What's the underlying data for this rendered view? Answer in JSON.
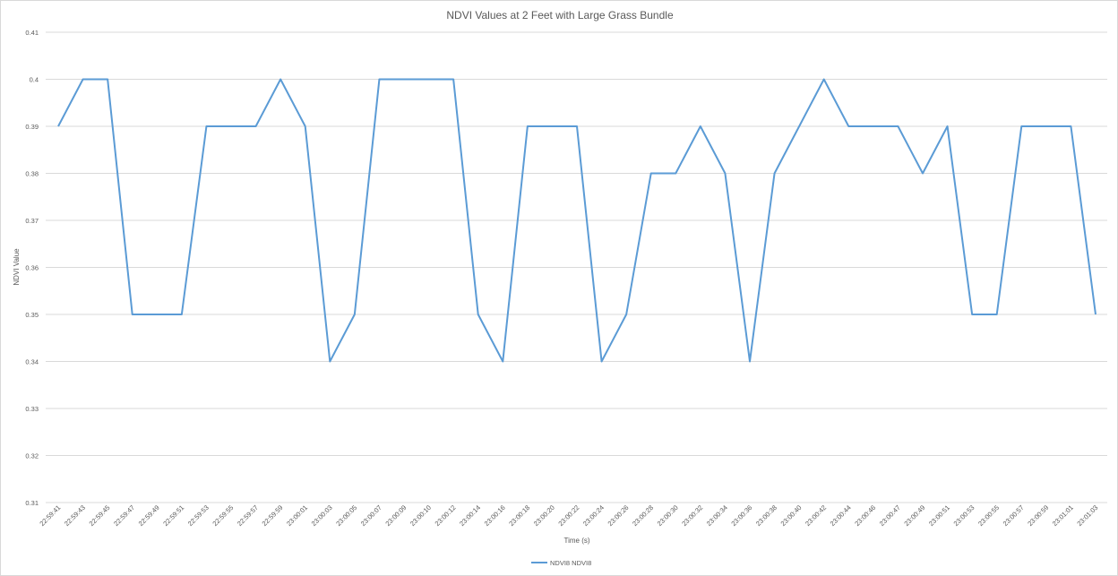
{
  "chart_data": {
    "type": "line",
    "title": "NDVI Values at 2 Feet with Large Grass Bundle",
    "xlabel": "Time (s)",
    "ylabel": "NDVI Value",
    "ylim": [
      0.31,
      0.41
    ],
    "yticks": [
      "0.31",
      "0.32",
      "0.33",
      "0.34",
      "0.35",
      "0.36",
      "0.37",
      "0.38",
      "0.39",
      "0.4",
      "0.41"
    ],
    "grid": true,
    "legend_position": "bottom",
    "colors": {
      "series": "#5b9bd5",
      "grid": "#d9d9d9",
      "text": "#595959"
    },
    "x": [
      "22:59:41",
      "22:59:43",
      "22:59:45",
      "22:59:47",
      "22:59:49",
      "22:59:51",
      "22:59:53",
      "22:59:55",
      "22:59:57",
      "22:59:59",
      "23:00:01",
      "23:00:03",
      "23:00:05",
      "23:00:07",
      "23:00:09",
      "23:00:10",
      "23:00:12",
      "23:00:14",
      "23:00:16",
      "23:00:18",
      "23:00:20",
      "23:00:22",
      "23:00:24",
      "23:00:26",
      "23:00:28",
      "23:00:30",
      "23:00:32",
      "23:00:34",
      "23:00:36",
      "23:00:38",
      "23:00:40",
      "23:00:42",
      "23:00:44",
      "23:00:46",
      "23:00:47",
      "23:00:49",
      "23:00:51",
      "23:00:53",
      "23:00:55",
      "23:00:57",
      "23:00:59",
      "23:01:01",
      "23:01:03"
    ],
    "series": [
      {
        "name": "NDVI8 NDVI8",
        "values": [
          0.39,
          0.4,
          0.4,
          0.35,
          0.35,
          0.35,
          0.39,
          0.39,
          0.39,
          0.4,
          0.39,
          0.34,
          0.35,
          0.4,
          0.4,
          0.4,
          0.4,
          0.35,
          0.34,
          0.39,
          0.39,
          0.39,
          0.34,
          0.35,
          0.38,
          0.38,
          0.39,
          0.38,
          0.34,
          0.38,
          0.39,
          0.4,
          0.39,
          0.39,
          0.39,
          0.38,
          0.39,
          0.35,
          0.35,
          0.39,
          0.39,
          0.39,
          0.35
        ]
      }
    ]
  }
}
